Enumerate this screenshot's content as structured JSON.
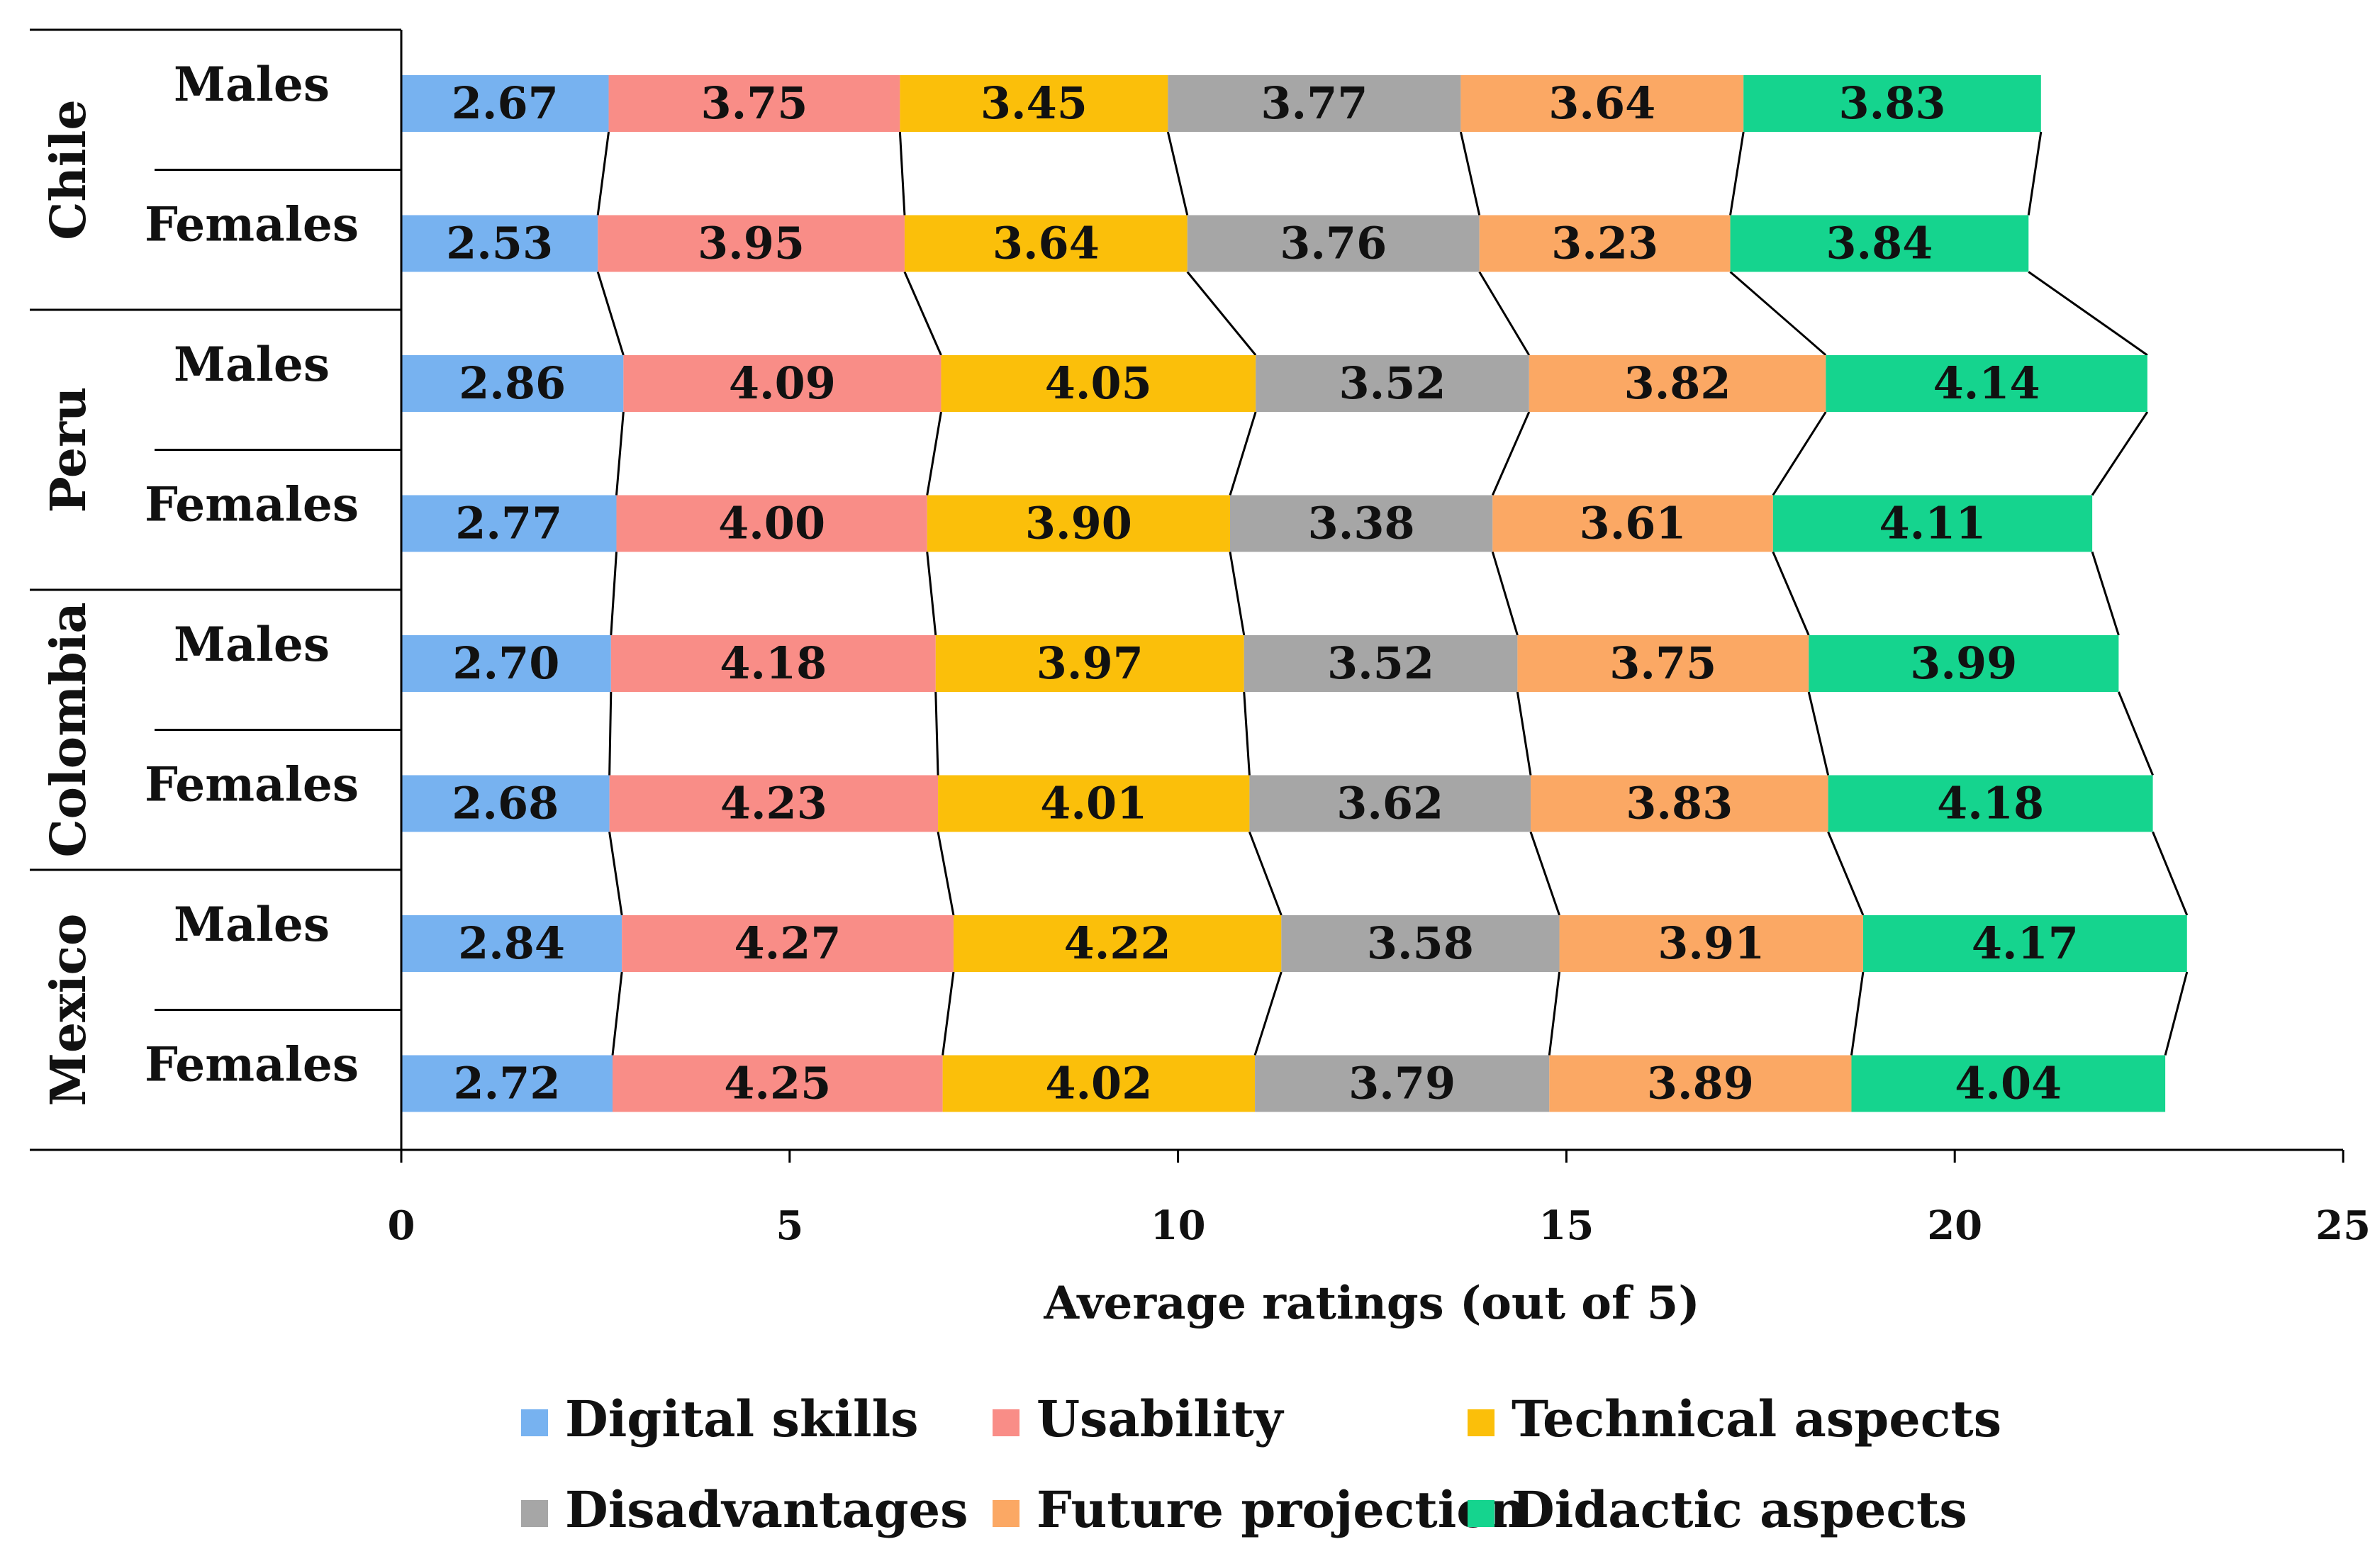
{
  "chart_data": {
    "type": "bar",
    "orientation": "horizontal",
    "stacked": true,
    "title": "",
    "xlabel": "Average ratings (out of 5)",
    "ylabel": "",
    "xlim": [
      0,
      25
    ],
    "xticks": [
      "0",
      "5",
      "10",
      "15",
      "20",
      "25"
    ],
    "grid": false,
    "legend_position": "bottom",
    "series": [
      {
        "name": "Digital skills",
        "color": "#77b2f0"
      },
      {
        "name": "Usability",
        "color": "#f98d87"
      },
      {
        "name": "Technical aspects",
        "color": "#fbbf0a"
      },
      {
        "name": "Disadvantages",
        "color": "#a6a6a6"
      },
      {
        "name": "Future projection",
        "color": "#fba864"
      },
      {
        "name": "Didactic aspects",
        "color": "#15d48e"
      }
    ],
    "groups": [
      {
        "country": "Chile",
        "rows": [
          {
            "gender": "Males",
            "values": [
              2.67,
              3.75,
              3.45,
              3.77,
              3.64,
              3.83
            ],
            "labels": [
              "2.67",
              "3.75",
              "3.45",
              "3.77",
              "3.64",
              "3.83"
            ]
          },
          {
            "gender": "Females",
            "values": [
              2.53,
              3.95,
              3.64,
              3.76,
              3.23,
              3.84
            ],
            "labels": [
              "2.53",
              "3.95",
              "3.64",
              "3.76",
              "3.23",
              "3.84"
            ]
          }
        ]
      },
      {
        "country": "Peru",
        "rows": [
          {
            "gender": "Males",
            "values": [
              2.86,
              4.09,
              4.05,
              3.52,
              3.82,
              4.14
            ],
            "labels": [
              "2.86",
              "4.09",
              "4.05",
              "3.52",
              "3.82",
              "4.14"
            ]
          },
          {
            "gender": "Females",
            "values": [
              2.77,
              4.0,
              3.9,
              3.38,
              3.61,
              4.11
            ],
            "labels": [
              "2.77",
              "4.00",
              "3.90",
              "3.38",
              "3.61",
              "4.11"
            ]
          }
        ]
      },
      {
        "country": "Colombia",
        "rows": [
          {
            "gender": "Males",
            "values": [
              2.7,
              4.18,
              3.97,
              3.52,
              3.75,
              3.99
            ],
            "labels": [
              "2.70",
              "4.18",
              "3.97",
              "3.52",
              "3.75",
              "3.99"
            ]
          },
          {
            "gender": "Females",
            "values": [
              2.68,
              4.23,
              4.01,
              3.62,
              3.83,
              4.18
            ],
            "labels": [
              "2.68",
              "4.23",
              "4.01",
              "3.62",
              "3.83",
              "4.18"
            ]
          }
        ]
      },
      {
        "country": "Mexico",
        "rows": [
          {
            "gender": "Males",
            "values": [
              2.84,
              4.27,
              4.22,
              3.58,
              3.91,
              4.17
            ],
            "labels": [
              "2.84",
              "4.27",
              "4.22",
              "3.58",
              "3.91",
              "4.17"
            ]
          },
          {
            "gender": "Females",
            "values": [
              2.72,
              4.25,
              4.02,
              3.79,
              3.89,
              4.04
            ],
            "labels": [
              "2.72",
              "4.25",
              "4.02",
              "3.79",
              "3.89",
              "4.04"
            ]
          }
        ]
      }
    ]
  }
}
